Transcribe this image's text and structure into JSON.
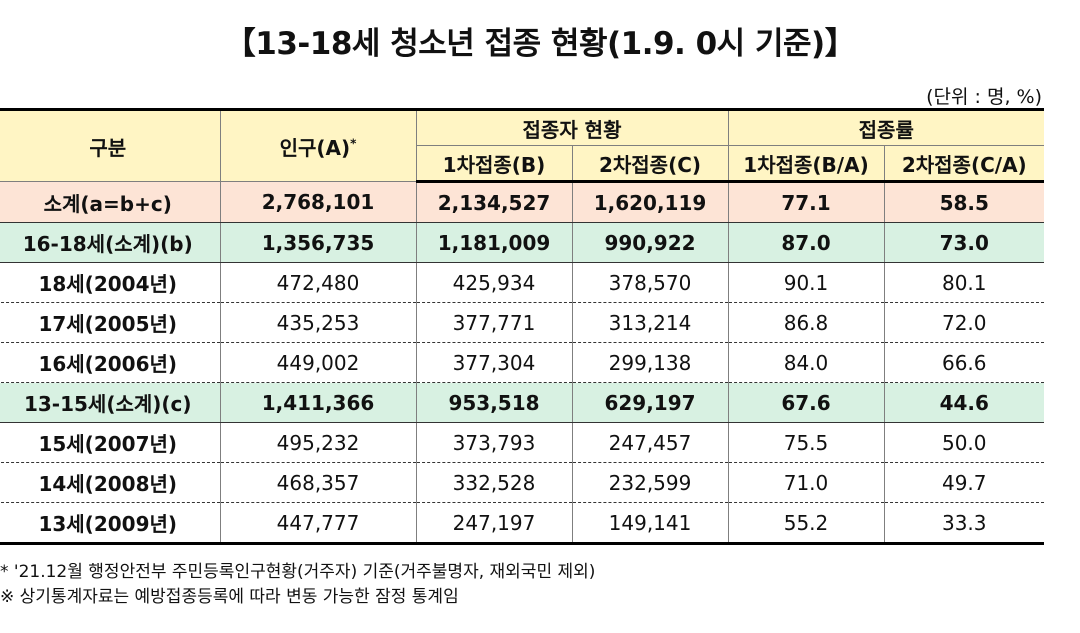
{
  "title": "【13-18세 청소년 접종 현황(1.9. 0시 기준)】",
  "unit": "(단위 : 명, %)",
  "header": {
    "category": "구분",
    "population": "인구(A)",
    "population_mark": "*",
    "vaccination_status": "접종자 현황",
    "vaccination_rate": "접종률",
    "dose1": "1차접종(B)",
    "dose2": "2차접종(C)",
    "rate1": "1차접종(B/A)",
    "rate2": "2차접종(C/A)"
  },
  "rows": [
    {
      "type": "subtotal",
      "cells": [
        "소계(a=b+c)",
        "2,768,101",
        "2,134,527",
        "1,620,119",
        "77.1",
        "58.5"
      ]
    },
    {
      "type": "group",
      "cells": [
        "16-18세(소계)(b)",
        "1,356,735",
        "1,181,009",
        "990,922",
        "87.0",
        "73.0"
      ]
    },
    {
      "type": "normal",
      "cells": [
        "18세(2004년)",
        "472,480",
        "425,934",
        "378,570",
        "90.1",
        "80.1"
      ]
    },
    {
      "type": "normal",
      "cells": [
        "17세(2005년)",
        "435,253",
        "377,771",
        "313,214",
        "86.8",
        "72.0"
      ]
    },
    {
      "type": "normal",
      "cells": [
        "16세(2006년)",
        "449,002",
        "377,304",
        "299,138",
        "84.0",
        "66.6"
      ]
    },
    {
      "type": "group",
      "cells": [
        "13-15세(소계)(c)",
        "1,411,366",
        "953,518",
        "629,197",
        "67.6",
        "44.6"
      ]
    },
    {
      "type": "normal",
      "cells": [
        "15세(2007년)",
        "495,232",
        "373,793",
        "247,457",
        "75.5",
        "50.0"
      ]
    },
    {
      "type": "normal",
      "cells": [
        "14세(2008년)",
        "468,357",
        "332,528",
        "232,599",
        "71.0",
        "49.7"
      ]
    },
    {
      "type": "normal",
      "cells": [
        "13세(2009년)",
        "447,777",
        "247,197",
        "149,141",
        "55.2",
        "33.3"
      ]
    }
  ],
  "notes": [
    "* '21.12월 행정안전부 주민등록인구현황(거주자) 기준(거주불명자, 재외국민 제외)",
    "※ 상기통계자료는 예방접종등록에 따라 변동 가능한 잠정 통계임"
  ]
}
